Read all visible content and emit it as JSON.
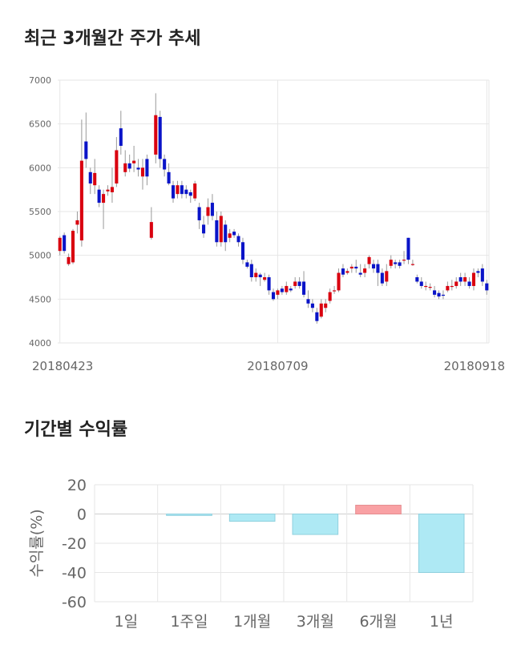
{
  "sections": {
    "price_title": "최근 3개월간 주가 추세",
    "return_title": "기간별 수익률"
  },
  "chart_data": [
    {
      "type": "candlestick",
      "title": "최근 3개월간 주가 추세",
      "ylim": [
        4000,
        7000
      ],
      "y_ticks": [
        4000,
        4500,
        5000,
        5500,
        6000,
        6500,
        7000
      ],
      "x_tick_labels": [
        "20180423",
        "20180709",
        "20180918"
      ],
      "grid": true,
      "colors": {
        "up": "#d9000f",
        "down": "#0a14c8",
        "wick": "#999999"
      },
      "candles": [
        [
          5050,
          5200,
          5000,
          5220
        ],
        [
          5230,
          5050,
          5020,
          5260
        ],
        [
          4900,
          4980,
          4880,
          5020
        ],
        [
          4920,
          5280,
          4900,
          5300
        ],
        [
          5350,
          5400,
          5250,
          5500
        ],
        [
          5170,
          6080,
          5100,
          6550
        ],
        [
          6300,
          6100,
          6000,
          6630
        ],
        [
          5950,
          5820,
          5700,
          6000
        ],
        [
          5800,
          5940,
          5700,
          6100
        ],
        [
          5750,
          5600,
          5550,
          5800
        ],
        [
          5600,
          5700,
          5300,
          5750
        ],
        [
          5730,
          5750,
          5680,
          5800
        ],
        [
          5720,
          5780,
          5600,
          6000
        ],
        [
          5820,
          6200,
          5780,
          6350
        ],
        [
          6450,
          6250,
          6150,
          6650
        ],
        [
          5950,
          6050,
          5900,
          6200
        ],
        [
          6050,
          5990,
          5950,
          6150
        ],
        [
          6050,
          6080,
          5950,
          6250
        ],
        [
          6000,
          5980,
          5900,
          6100
        ],
        [
          5900,
          6000,
          5750,
          6100
        ],
        [
          6100,
          5900,
          5800,
          6150
        ],
        [
          5200,
          5380,
          5180,
          5550
        ],
        [
          6150,
          6600,
          6050,
          6850
        ],
        [
          6580,
          6100,
          6000,
          6650
        ],
        [
          6100,
          5980,
          5900,
          6150
        ],
        [
          5950,
          5820,
          5800,
          6050
        ],
        [
          5800,
          5650,
          5600,
          5850
        ],
        [
          5700,
          5800,
          5650,
          5850
        ],
        [
          5800,
          5700,
          5650,
          5850
        ],
        [
          5750,
          5700,
          5650,
          5800
        ],
        [
          5720,
          5680,
          5600,
          5750
        ],
        [
          5650,
          5820,
          5620,
          5850
        ],
        [
          5550,
          5400,
          5300,
          5600
        ],
        [
          5350,
          5250,
          5200,
          5450
        ],
        [
          5450,
          5550,
          5350,
          5650
        ],
        [
          5600,
          5450,
          5400,
          5700
        ],
        [
          5400,
          5150,
          5100,
          5500
        ],
        [
          5150,
          5450,
          5100,
          5500
        ],
        [
          5350,
          5150,
          5050,
          5400
        ],
        [
          5200,
          5250,
          5150,
          5300
        ],
        [
          5270,
          5230,
          5200,
          5300
        ],
        [
          5220,
          5150,
          5100,
          5250
        ],
        [
          5150,
          4950,
          4900,
          5200
        ],
        [
          4920,
          4870,
          4850,
          4950
        ],
        [
          4900,
          4750,
          4700,
          4950
        ],
        [
          4750,
          4800,
          4700,
          4850
        ],
        [
          4780,
          4750,
          4650,
          4800
        ],
        [
          4720,
          4750,
          4700,
          4800
        ],
        [
          4750,
          4600,
          4550,
          4780
        ],
        [
          4580,
          4500,
          4480,
          4620
        ],
        [
          4550,
          4600,
          4500,
          4620
        ],
        [
          4620,
          4580,
          4550,
          4650
        ],
        [
          4580,
          4650,
          4550,
          4700
        ],
        [
          4620,
          4600,
          4580,
          4650
        ],
        [
          4650,
          4700,
          4620,
          4750
        ],
        [
          4700,
          4650,
          4620,
          4750
        ],
        [
          4700,
          4550,
          4520,
          4820
        ],
        [
          4500,
          4450,
          4400,
          4600
        ],
        [
          4450,
          4400,
          4350,
          4500
        ],
        [
          4350,
          4250,
          4220,
          4400
        ],
        [
          4300,
          4450,
          4280,
          4500
        ],
        [
          4400,
          4450,
          4350,
          4500
        ],
        [
          4480,
          4580,
          4450,
          4620
        ],
        [
          4600,
          4600,
          4560,
          4650
        ],
        [
          4600,
          4800,
          4580,
          4850
        ],
        [
          4850,
          4780,
          4750,
          4900
        ],
        [
          4800,
          4820,
          4780,
          4850
        ],
        [
          4850,
          4870,
          4800,
          4900
        ],
        [
          4870,
          4850,
          4800,
          4950
        ],
        [
          4800,
          4780,
          4750,
          4900
        ],
        [
          4800,
          4850,
          4750,
          4900
        ],
        [
          4900,
          4980,
          4850,
          5000
        ],
        [
          4900,
          4850,
          4800,
          4950
        ],
        [
          4900,
          4800,
          4650,
          4950
        ],
        [
          4800,
          4680,
          4650,
          4850
        ],
        [
          4700,
          4820,
          4650,
          4900
        ],
        [
          4880,
          4950,
          4850,
          5000
        ],
        [
          4920,
          4900,
          4850,
          4950
        ],
        [
          4920,
          4880,
          4850,
          4950
        ],
        [
          4950,
          4950,
          4900,
          5050
        ],
        [
          5200,
          4950,
          4900,
          5200
        ],
        [
          4900,
          4900,
          4880,
          4950
        ],
        [
          4750,
          4700,
          4680,
          4780
        ],
        [
          4700,
          4650,
          4620,
          4750
        ],
        [
          4650,
          4650,
          4600,
          4700
        ],
        [
          4640,
          4640,
          4600,
          4680
        ],
        [
          4600,
          4550,
          4520,
          4650
        ],
        [
          4570,
          4530,
          4500,
          4600
        ],
        [
          4550,
          4540,
          4500,
          4600
        ],
        [
          4600,
          4650,
          4580,
          4700
        ],
        [
          4650,
          4650,
          4600,
          4720
        ],
        [
          4650,
          4700,
          4620,
          4750
        ],
        [
          4750,
          4700,
          4650,
          4800
        ],
        [
          4700,
          4750,
          4650,
          4800
        ],
        [
          4700,
          4650,
          4620,
          4750
        ],
        [
          4650,
          4800,
          4600,
          4850
        ],
        [
          4820,
          4800,
          4750,
          4850
        ],
        [
          4850,
          4700,
          4650,
          4900
        ],
        [
          4680,
          4600,
          4550,
          4720
        ]
      ]
    },
    {
      "type": "bar",
      "title": "기간별 수익률",
      "ylabel": "수익률(%)",
      "categories": [
        "1일",
        "1주일",
        "1개월",
        "3개월",
        "6개월",
        "1년"
      ],
      "values": [
        0,
        -1,
        -5,
        -14,
        6,
        -40
      ],
      "ylim": [
        -60,
        20
      ],
      "y_ticks": [
        -60,
        -40,
        -20,
        0,
        20
      ],
      "grid": true,
      "colors": {
        "positive": "#f9a1a4",
        "negative": "#aee9f4",
        "positive_edge": "#e58b8f",
        "negative_edge": "#8fd0de"
      }
    }
  ]
}
